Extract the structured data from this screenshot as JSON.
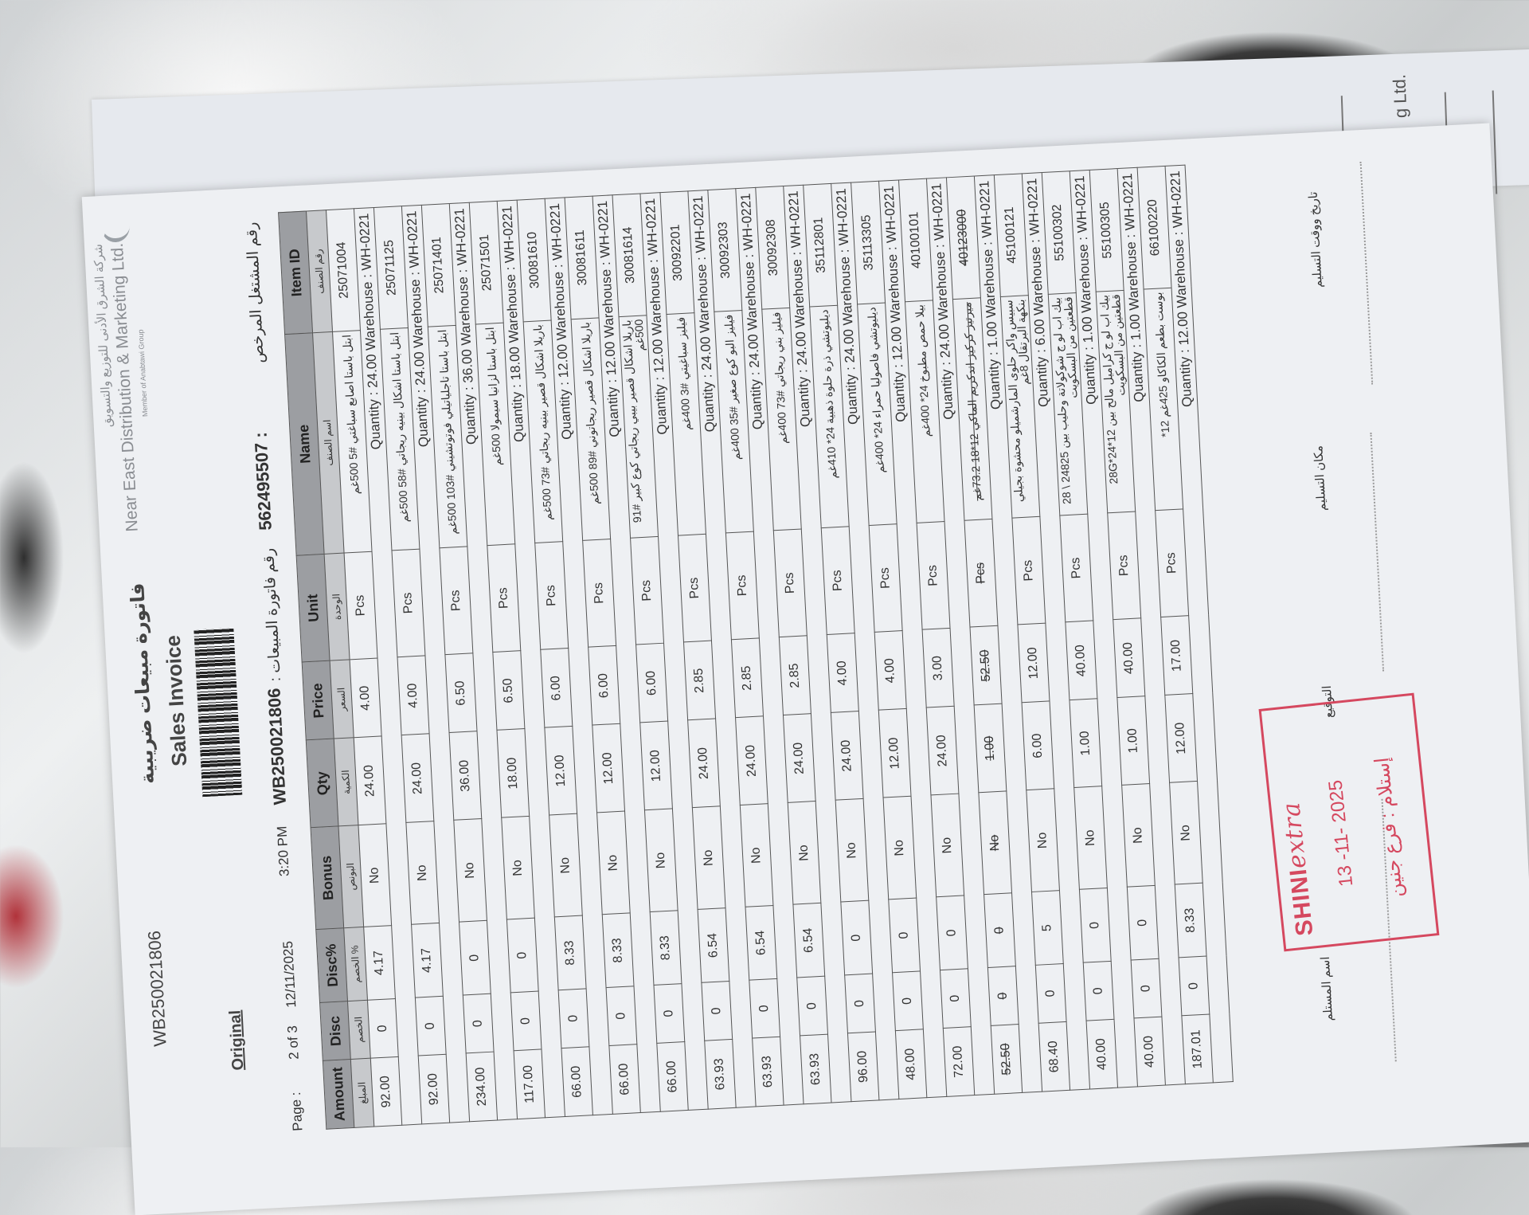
{
  "background_paper": {
    "fragment": "g Ltd."
  },
  "header": {
    "invoice_ref_top": "WB250021806",
    "copy_label": "Original",
    "page_label": "Page :",
    "page_value": "2 of 3",
    "date": "12/11/2025",
    "time": "3:20 PM",
    "title_ar": "فاتورة مبيعات ضريبية",
    "title_en": "Sales Invoice",
    "invoice_no_label": "رقم فاتورة المبيعات :",
    "invoice_no": "WB250021806",
    "license_label": "رقم المشتغل المرخص",
    "license_no": "562495507 :"
  },
  "company": {
    "name_ar": "شركة الشرق الأدنى للتوزيع والتسويق",
    "name_en": "Near East Distribution & Marketing Ltd.",
    "group": "Member of Anabtawi Group"
  },
  "table": {
    "columns": [
      {
        "en": "Amount",
        "ar": "المبلغ"
      },
      {
        "en": "Disc",
        "ar": "الخصم"
      },
      {
        "en": "Disc%",
        "ar": "% الخصم"
      },
      {
        "en": "Bonus",
        "ar": "البونص"
      },
      {
        "en": "Qty",
        "ar": "الكمية"
      },
      {
        "en": "Price",
        "ar": "السعر"
      },
      {
        "en": "Unit",
        "ar": "الوحدة"
      },
      {
        "en": "Name",
        "ar": "اسم الصنف"
      },
      {
        "en": "Item ID",
        "ar": "رقم الصنف"
      }
    ],
    "items": [
      {
        "amount": "92.00",
        "disc": "0",
        "disc_pct": "4.17",
        "bonus": "No",
        "qty": "24.00",
        "price": "4.00",
        "unit": "Pcs",
        "name": "ابتل باستا اصابع سباغتي #5 500غم",
        "id": "25071004",
        "detail": "Quantity : 24.00  Warehouse : WH-0221"
      },
      {
        "amount": "92.00",
        "disc": "0",
        "disc_pct": "4.17",
        "bonus": "No",
        "qty": "24.00",
        "price": "4.00",
        "unit": "Pcs",
        "name": "ابتل باستا اشكال بينيه ريجاتي #58 500غم",
        "id": "25071125",
        "detail": "Quantity : 24.00  Warehouse : WH-0221"
      },
      {
        "amount": "234.00",
        "disc": "0",
        "disc_pct": "0",
        "bonus": "No",
        "qty": "36.00",
        "price": "6.50",
        "unit": "Pcs",
        "name": "ابتل باستا تاجلياتيلي فوتوتشيني #103 500غم",
        "id": "25071401",
        "detail": "Quantity : 36.00  Warehouse : WH-0221"
      },
      {
        "amount": "117.00",
        "disc": "0",
        "disc_pct": "0",
        "bonus": "No",
        "qty": "18.00",
        "price": "6.50",
        "unit": "Pcs",
        "name": "ابتل باستا لزانيا سيمولا 500غم",
        "id": "25071501",
        "detail": "Quantity : 18.00  Warehouse : WH-0221"
      },
      {
        "amount": "66.00",
        "disc": "0",
        "disc_pct": "8.33",
        "bonus": "No",
        "qty": "12.00",
        "price": "6.00",
        "unit": "Pcs",
        "name": "باريلا اشكال قصير بينيه ريجاتي #73 500غم",
        "id": "30081610",
        "detail": "Quantity : 12.00  Warehouse : WH-0221"
      },
      {
        "amount": "66.00",
        "disc": "0",
        "disc_pct": "8.33",
        "bonus": "No",
        "qty": "12.00",
        "price": "6.00",
        "unit": "Pcs",
        "name": "باريلا اشكال قصير ريجاتوني #89 500غم",
        "id": "30081611",
        "detail": "Quantity : 12.00  Warehouse : WH-0221"
      },
      {
        "amount": "66.00",
        "disc": "0",
        "disc_pct": "8.33",
        "bonus": "No",
        "qty": "12.00",
        "price": "6.00",
        "unit": "Pcs",
        "name": "باريلا اشكال قصير بيبي ريجاتي كوع كبير #91 500غم",
        "id": "30081614",
        "detail": "Quantity : 12.00  Warehouse : WH-0221"
      },
      {
        "amount": "63.93",
        "disc": "0",
        "disc_pct": "6.54",
        "bonus": "No",
        "qty": "24.00",
        "price": "2.85",
        "unit": "Pcs",
        "name": "فيليز سباغيتي #3 400غم",
        "id": "30092201",
        "detail": "Quantity : 24.00  Warehouse : WH-0221"
      },
      {
        "amount": "63.93",
        "disc": "0",
        "disc_pct": "6.54",
        "bonus": "No",
        "qty": "24.00",
        "price": "2.85",
        "unit": "Pcs",
        "name": "فيليز البو كوع صغير #35 400غم",
        "id": "30092303",
        "detail": "Quantity : 24.00  Warehouse : WH-0221"
      },
      {
        "amount": "63.93",
        "disc": "0",
        "disc_pct": "6.54",
        "bonus": "No",
        "qty": "24.00",
        "price": "2.85",
        "unit": "Pcs",
        "name": "فيليز بني ريجاتي #73 400غم",
        "id": "30092308",
        "detail": "Quantity : 24.00  Warehouse : WH-0221"
      },
      {
        "amount": "96.00",
        "disc": "0",
        "disc_pct": "0",
        "bonus": "No",
        "qty": "24.00",
        "price": "4.00",
        "unit": "Pcs",
        "name": "ديليوتشي ذرة حلوة ذهبية 24* 410غم",
        "id": "35112801",
        "detail": "Quantity : 24.00  Warehouse : WH-0221"
      },
      {
        "amount": "48.00",
        "disc": "0",
        "disc_pct": "0",
        "bonus": "No",
        "qty": "12.00",
        "price": "4.00",
        "unit": "Pcs",
        "name": "ديليوتشي فاصوليا حمراء 24* 400غم",
        "id": "35113305",
        "detail": "Quantity : 12.00  Warehouse : WH-0221"
      },
      {
        "amount": "72.00",
        "disc": "0",
        "disc_pct": "0",
        "bonus": "No",
        "qty": "24.00",
        "price": "3.00",
        "unit": "Pcs",
        "name": "بيلا حمص مطبوخ 24* 400غم",
        "id": "40100101",
        "detail": "Quantity : 24.00  Warehouse : WH-0221"
      },
      {
        "amount": "52.50",
        "disc": "0",
        "disc_pct": "0",
        "bonus": "No",
        "qty": "1.00",
        "price": "52.50",
        "unit": "Pcs",
        "name": "ميرتيز كركيز اندكريم الماكي 12*18 73.2غم",
        "id": "40123000",
        "detail": "Quantity : 1.00  Warehouse : WH-0221",
        "struck": true
      },
      {
        "amount": "68.40",
        "disc": "0",
        "disc_pct": "5",
        "bonus": "No",
        "qty": "6.00",
        "price": "12.00",
        "unit": "Pcs",
        "name": "سبيس واكر حلوى المارشميلو محشوة بجيلي بنكهة البرتقال 8غم",
        "id": "45100121",
        "detail": "Quantity : 6.00  Warehouse : WH-0221"
      },
      {
        "amount": "40.00",
        "disc": "0",
        "disc_pct": "0",
        "bonus": "No",
        "qty": "1.00",
        "price": "40.00",
        "unit": "Pcs",
        "name": "بيك اب لو ج شوكولاتة وحليب بين 24825 \\ 28 قطعتين من البسكويت",
        "id": "55100302",
        "detail": "Quantity : 1.00  Warehouse : WH-0221"
      },
      {
        "amount": "40.00",
        "disc": "0",
        "disc_pct": "0",
        "bonus": "No",
        "qty": "1.00",
        "price": "40.00",
        "unit": "Pcs",
        "name": "بيك اب لو ج كراميل مالح بين 28G*24*12 قطعتين من البسكويت",
        "id": "55100305",
        "detail": "Quantity : 1.00  Warehouse : WH-0221"
      },
      {
        "amount": "187.01",
        "disc": "0",
        "disc_pct": "8.33",
        "bonus": "No",
        "qty": "12.00",
        "price": "17.00",
        "unit": "Pcs",
        "name": "بوست بطعم الكاكاو 425غم 12*",
        "id": "66100220",
        "detail": "Quantity : 12.00  Warehouse : WH-0221"
      }
    ]
  },
  "footer": {
    "receiver_name_label": "اسم المستلم",
    "signature_label": "التوقيع",
    "delivery_place_label": "مكان التسليم",
    "delivery_datetime_label": "تاريخ ووقت التسليم"
  },
  "stamp": {
    "brand": "SHINI",
    "brand_script": "extra",
    "date": "13 -11- 2025",
    "branch": "إستلام : فرع جنين",
    "color": "#d5485f"
  }
}
